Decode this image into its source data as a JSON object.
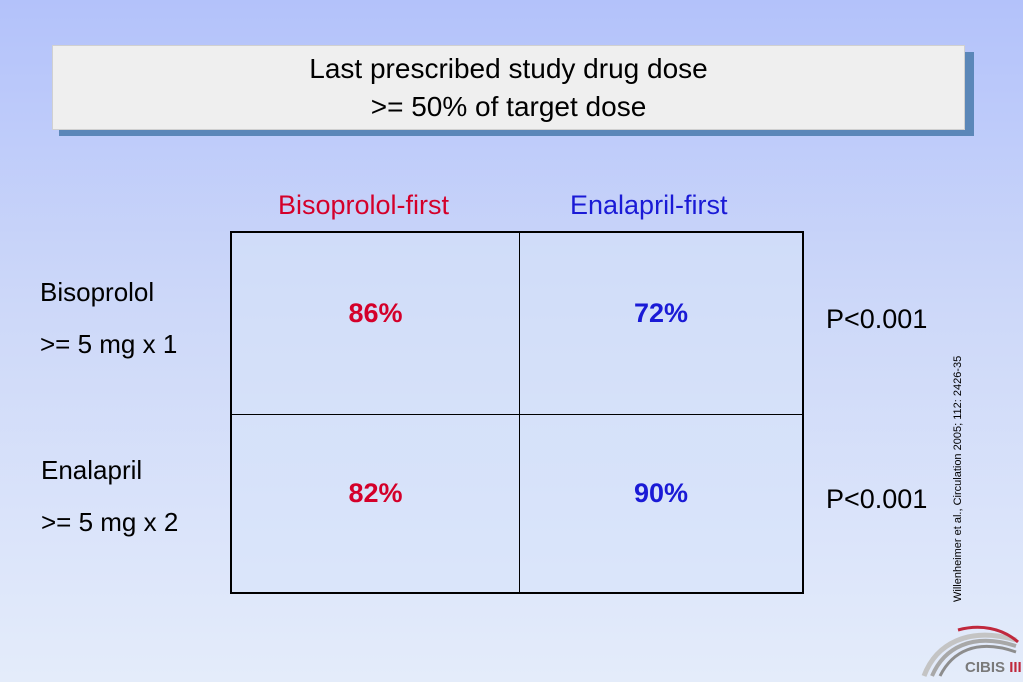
{
  "title": {
    "line1": "Last prescribed study drug dose",
    "line2": ">= 50% of target dose"
  },
  "columns": {
    "bisoprolol_first": "Bisoprolol-first",
    "enalapril_first": "Enalapril-first"
  },
  "rows": [
    {
      "label_line1": "Bisoprolol",
      "label_line2": ">= 5 mg x 1",
      "bisoprolol_first": "86%",
      "enalapril_first": "72%",
      "p_value": "P<0.001"
    },
    {
      "label_line1": "Enalapril",
      "label_line2": ">= 5 mg x 2",
      "bisoprolol_first": "82%",
      "enalapril_first": "90%",
      "p_value": "P<0.001"
    }
  ],
  "citation": "Willenheimer et al., Circulation 2005; 112: 2426-35",
  "logo": {
    "text_main": "CIBIS ",
    "text_accent": "III",
    "icon": "cibis-arch-logo"
  },
  "colors": {
    "bisoprolol_red": "#d4002a",
    "enalapril_blue": "#1a1ad6",
    "title_shadow": "#5b87b8"
  }
}
